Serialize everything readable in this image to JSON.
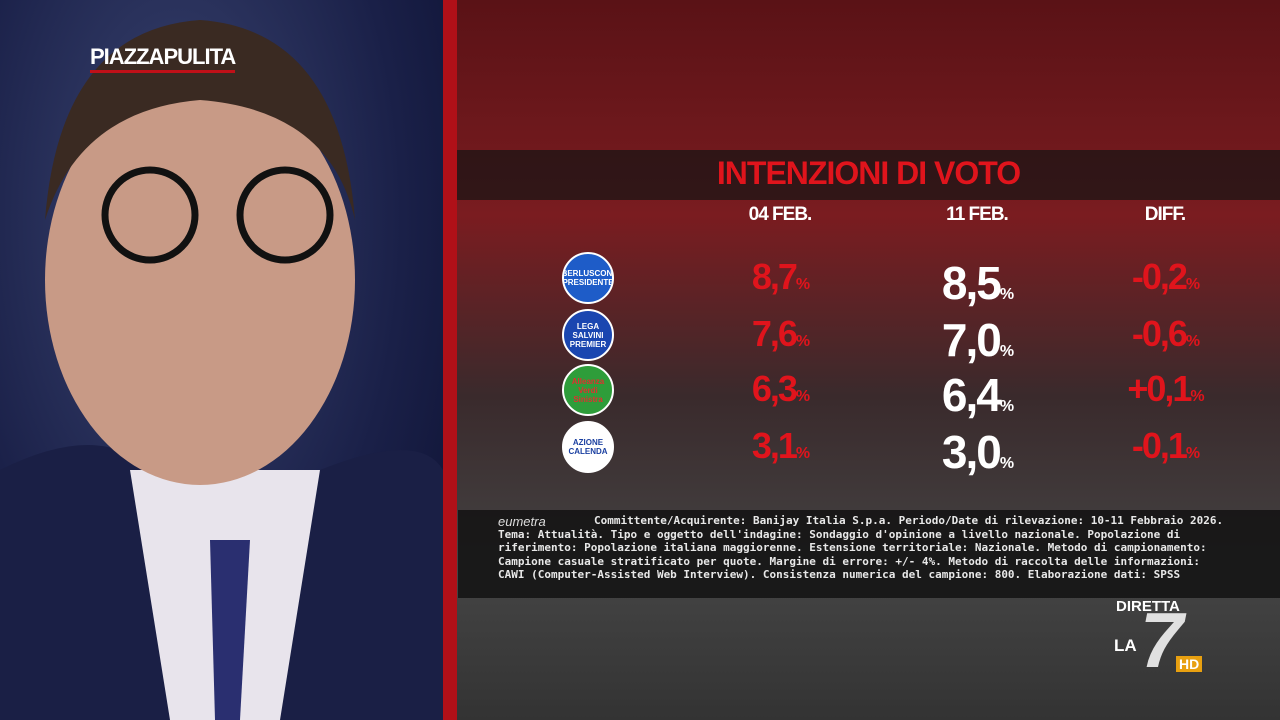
{
  "logo": {
    "part1": "PIAZZA",
    "part2": "PULITA"
  },
  "table": {
    "title": "INTENZIONI DI VOTO",
    "columns": [
      "04 FEB.",
      "11 FEB.",
      "DIFF."
    ],
    "rows": [
      {
        "party": {
          "lines": [
            "BERLUSCONI",
            "PRESIDENTE"
          ],
          "colors": [
            "#1e5cc8",
            "#ffffff"
          ]
        },
        "cells": [
          {
            "num": "8,7",
            "unit": "%"
          },
          {
            "num": "8,5",
            "unit": "%"
          },
          {
            "num": "-0,2",
            "unit": "%"
          }
        ]
      },
      {
        "party": {
          "lines": [
            "LEGA",
            "SALVINI",
            "PREMIER"
          ],
          "colors": [
            "#1a46b0",
            "#ffffff"
          ]
        },
        "cells": [
          {
            "num": "7,6",
            "unit": "%"
          },
          {
            "num": "7,0",
            "unit": "%"
          },
          {
            "num": "-0,6",
            "unit": "%"
          }
        ]
      },
      {
        "party": {
          "lines": [
            "Alleanza Verdi Sinistra"
          ],
          "colors": [
            "#2e9d3a",
            "#e03030"
          ]
        },
        "cells": [
          {
            "num": "6,3",
            "unit": "%"
          },
          {
            "num": "6,4",
            "unit": "%"
          },
          {
            "num": "+0,1",
            "unit": "%"
          }
        ]
      },
      {
        "party": {
          "lines": [
            "AZIONE",
            "CALENDA"
          ],
          "colors": [
            "#ffffff",
            "#1a3fa0"
          ]
        },
        "cells": [
          {
            "num": "3,1",
            "unit": "%"
          },
          {
            "num": "3,0",
            "unit": "%"
          },
          {
            "num": "-0,1",
            "unit": "%"
          }
        ]
      }
    ]
  },
  "source": {
    "brand": "eumetra",
    "note": "Committente/Acquirente: Banijay Italia S.p.a. Periodo/Date di rilevazione: 10-11 Febbraio 2026. Tema: Attualità. Tipo e oggetto dell'indagine: Sondaggio d'opinione a livello nazionale. Popolazione di riferimento: Popolazione italiana maggiorenne. Estensione territoriale: Nazionale. Metodo di campionamento: Campione casuale stratificato per quote. Margine di errore: +/- 4%. Metodo di raccolta delle informazioni: CAWI (Computer-Assisted Web Interview). Consistenza numerica del campione: 800. Elaborazione dati: SPSS"
  },
  "channel": {
    "live": "DIRETTA",
    "la": "LA",
    "seven": "7",
    "hd": "HD"
  }
}
